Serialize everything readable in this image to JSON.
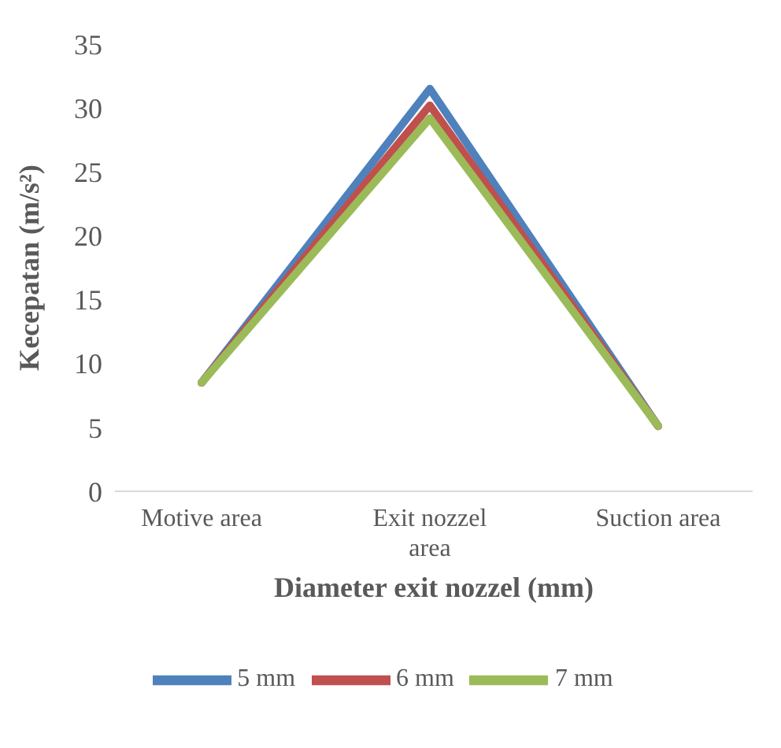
{
  "chart_data": {
    "type": "line",
    "xlabel": "Diameter exit nozzel (mm)",
    "ylabel": "Kecepatan (m/s²)",
    "categories": [
      "Motive area",
      "Exit nozzel area",
      "Suction area"
    ],
    "series": [
      {
        "name": "5 mm",
        "color": "#4f81bd",
        "values": [
          8.5,
          31.5,
          5.1
        ]
      },
      {
        "name": "6 mm",
        "color": "#c0504d",
        "values": [
          8.5,
          30.2,
          5.1
        ]
      },
      {
        "name": "7 mm",
        "color": "#9bbb59",
        "values": [
          8.5,
          29.2,
          5.1
        ]
      }
    ],
    "ylim": [
      0,
      35
    ],
    "yticks": [
      0,
      5,
      10,
      15,
      20,
      25,
      30,
      35
    ],
    "grid": false,
    "legend": "bottom",
    "marker": "none",
    "line_style": "solid"
  }
}
